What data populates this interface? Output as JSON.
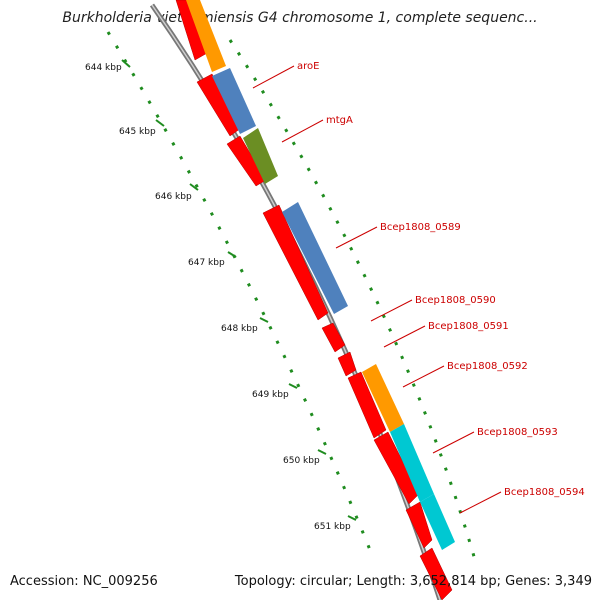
{
  "title": "Burkholderia vietnamiensis G4 chromosome 1, complete sequenc...",
  "footer": {
    "accession": "Accession: NC_009256",
    "summary": "Topology: circular; Length: 3,652,814 bp; Genes: 3,349"
  },
  "ticks": [
    {
      "label": "644 kbp"
    },
    {
      "label": "645 kbp"
    },
    {
      "label": "646 kbp"
    },
    {
      "label": "647 kbp"
    },
    {
      "label": "648 kbp"
    },
    {
      "label": "649 kbp"
    },
    {
      "label": "650 kbp"
    },
    {
      "label": "651 kbp"
    }
  ],
  "genes": [
    {
      "label": "aroE"
    },
    {
      "label": "mtgA"
    },
    {
      "label": "Bcep1808_0589"
    },
    {
      "label": "Bcep1808_0590"
    },
    {
      "label": "Bcep1808_0591"
    },
    {
      "label": "Bcep1808_0592"
    },
    {
      "label": "Bcep1808_0593"
    },
    {
      "label": "Bcep1808_0594"
    }
  ],
  "colors": {
    "cds": "#ff0000",
    "orange": "#ff9900",
    "blue": "#4f81bd",
    "olive": "#6b8e23",
    "cyan": "#00c8d2",
    "backbone": "#888888",
    "tick": "#1f8c1f",
    "label": "#cc0000"
  }
}
